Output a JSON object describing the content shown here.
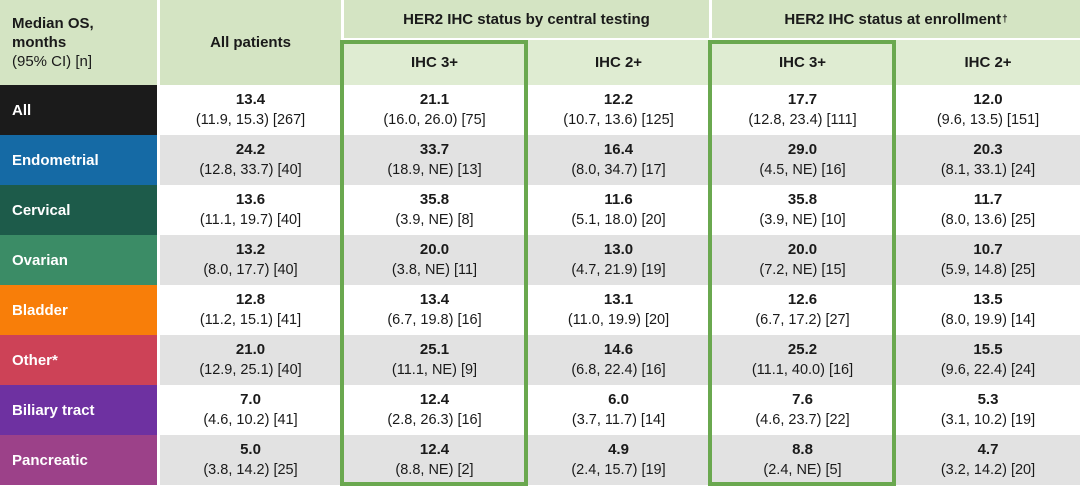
{
  "headers": {
    "corner": {
      "line1": "Median OS,",
      "line2": "months",
      "line3": "(95% CI) [n]"
    },
    "all_patients": "All patients",
    "groups": [
      {
        "label": "HER2 IHC status by central testing",
        "dagger": ""
      },
      {
        "label": "HER2 IHC status at enrollment",
        "dagger": "†"
      }
    ],
    "subheaders": [
      "IHC 3+",
      "IHC 2+",
      "IHC 3+",
      "IHC 2+"
    ]
  },
  "columns": [
    "All patients",
    "Central IHC 3+",
    "Central IHC 2+",
    "Enrollment IHC 3+",
    "Enrollment IHC 2+"
  ],
  "rows": [
    {
      "label": "All",
      "color": "#1b1b1b",
      "cells": [
        {
          "median": "13.4",
          "ci": "(11.9, 15.3) [267]"
        },
        {
          "median": "21.1",
          "ci": "(16.0, 26.0) [75]"
        },
        {
          "median": "12.2",
          "ci": "(10.7, 13.6) [125]"
        },
        {
          "median": "17.7",
          "ci": "(12.8, 23.4) [111]"
        },
        {
          "median": "12.0",
          "ci": "(9.6, 13.5) [151]"
        }
      ]
    },
    {
      "label": "Endometrial",
      "color": "#156aa5",
      "cells": [
        {
          "median": "24.2",
          "ci": "(12.8, 33.7) [40]"
        },
        {
          "median": "33.7",
          "ci": "(18.9, NE) [13]"
        },
        {
          "median": "16.4",
          "ci": "(8.0, 34.7) [17]"
        },
        {
          "median": "29.0",
          "ci": "(4.5, NE) [16]"
        },
        {
          "median": "20.3",
          "ci": "(8.1, 33.1) [24]"
        }
      ]
    },
    {
      "label": "Cervical",
      "color": "#1d5b4a",
      "cells": [
        {
          "median": "13.6",
          "ci": "(11.1, 19.7) [40]"
        },
        {
          "median": "35.8",
          "ci": "(3.9, NE) [8]"
        },
        {
          "median": "11.6",
          "ci": "(5.1, 18.0) [20]"
        },
        {
          "median": "35.8",
          "ci": "(3.9, NE) [10]"
        },
        {
          "median": "11.7",
          "ci": "(8.0, 13.6) [25]"
        }
      ]
    },
    {
      "label": "Ovarian",
      "color": "#3b8c66",
      "cells": [
        {
          "median": "13.2",
          "ci": "(8.0, 17.7) [40]"
        },
        {
          "median": "20.0",
          "ci": "(3.8, NE) [11]"
        },
        {
          "median": "13.0",
          "ci": "(4.7, 21.9) [19]"
        },
        {
          "median": "20.0",
          "ci": "(7.2, NE) [15]"
        },
        {
          "median": "10.7",
          "ci": "(5.9, 14.8) [25]"
        }
      ]
    },
    {
      "label": "Bladder",
      "color": "#f87e09",
      "cells": [
        {
          "median": "12.8",
          "ci": "(11.2, 15.1) [41]"
        },
        {
          "median": "13.4",
          "ci": "(6.7, 19.8) [16]"
        },
        {
          "median": "13.1",
          "ci": "(11.0, 19.9) [20]"
        },
        {
          "median": "12.6",
          "ci": "(6.7, 17.2) [27]"
        },
        {
          "median": "13.5",
          "ci": "(8.0, 19.9) [14]"
        }
      ]
    },
    {
      "label": "Other*",
      "color": "#cd4257",
      "cells": [
        {
          "median": "21.0",
          "ci": "(12.9, 25.1) [40]"
        },
        {
          "median": "25.1",
          "ci": "(11.1, NE) [9]"
        },
        {
          "median": "14.6",
          "ci": "(6.8, 22.4) [16]"
        },
        {
          "median": "25.2",
          "ci": "(11.1, 40.0) [16]"
        },
        {
          "median": "15.5",
          "ci": "(9.6, 22.4) [24]"
        }
      ]
    },
    {
      "label": "Biliary tract",
      "color": "#6e31a1",
      "cells": [
        {
          "median": "7.0",
          "ci": "(4.6, 10.2) [41]"
        },
        {
          "median": "12.4",
          "ci": "(2.8, 26.3) [16]"
        },
        {
          "median": "6.0",
          "ci": "(3.7, 11.7) [14]"
        },
        {
          "median": "7.6",
          "ci": "(4.6, 23.7) [22]"
        },
        {
          "median": "5.3",
          "ci": "(3.1, 10.2) [19]"
        }
      ]
    },
    {
      "label": "Pancreatic",
      "color": "#9c4189",
      "cells": [
        {
          "median": "5.0",
          "ci": "(3.8, 14.2) [25]"
        },
        {
          "median": "12.4",
          "ci": "(8.8, NE) [2]"
        },
        {
          "median": "4.9",
          "ci": "(2.4, 15.7) [19]"
        },
        {
          "median": "8.8",
          "ci": "(2.4, NE) [5]"
        },
        {
          "median": "4.7",
          "ci": "(3.2, 14.2) [20]"
        }
      ]
    }
  ],
  "colors": {
    "header-green": "#d4e4c3",
    "subheader-green": "#dfecd2",
    "row-alt": "#e2e2e2",
    "row-white": "#ffffff",
    "highlight-border": "#6aa84f",
    "text-dark": "#1a1a1a"
  }
}
